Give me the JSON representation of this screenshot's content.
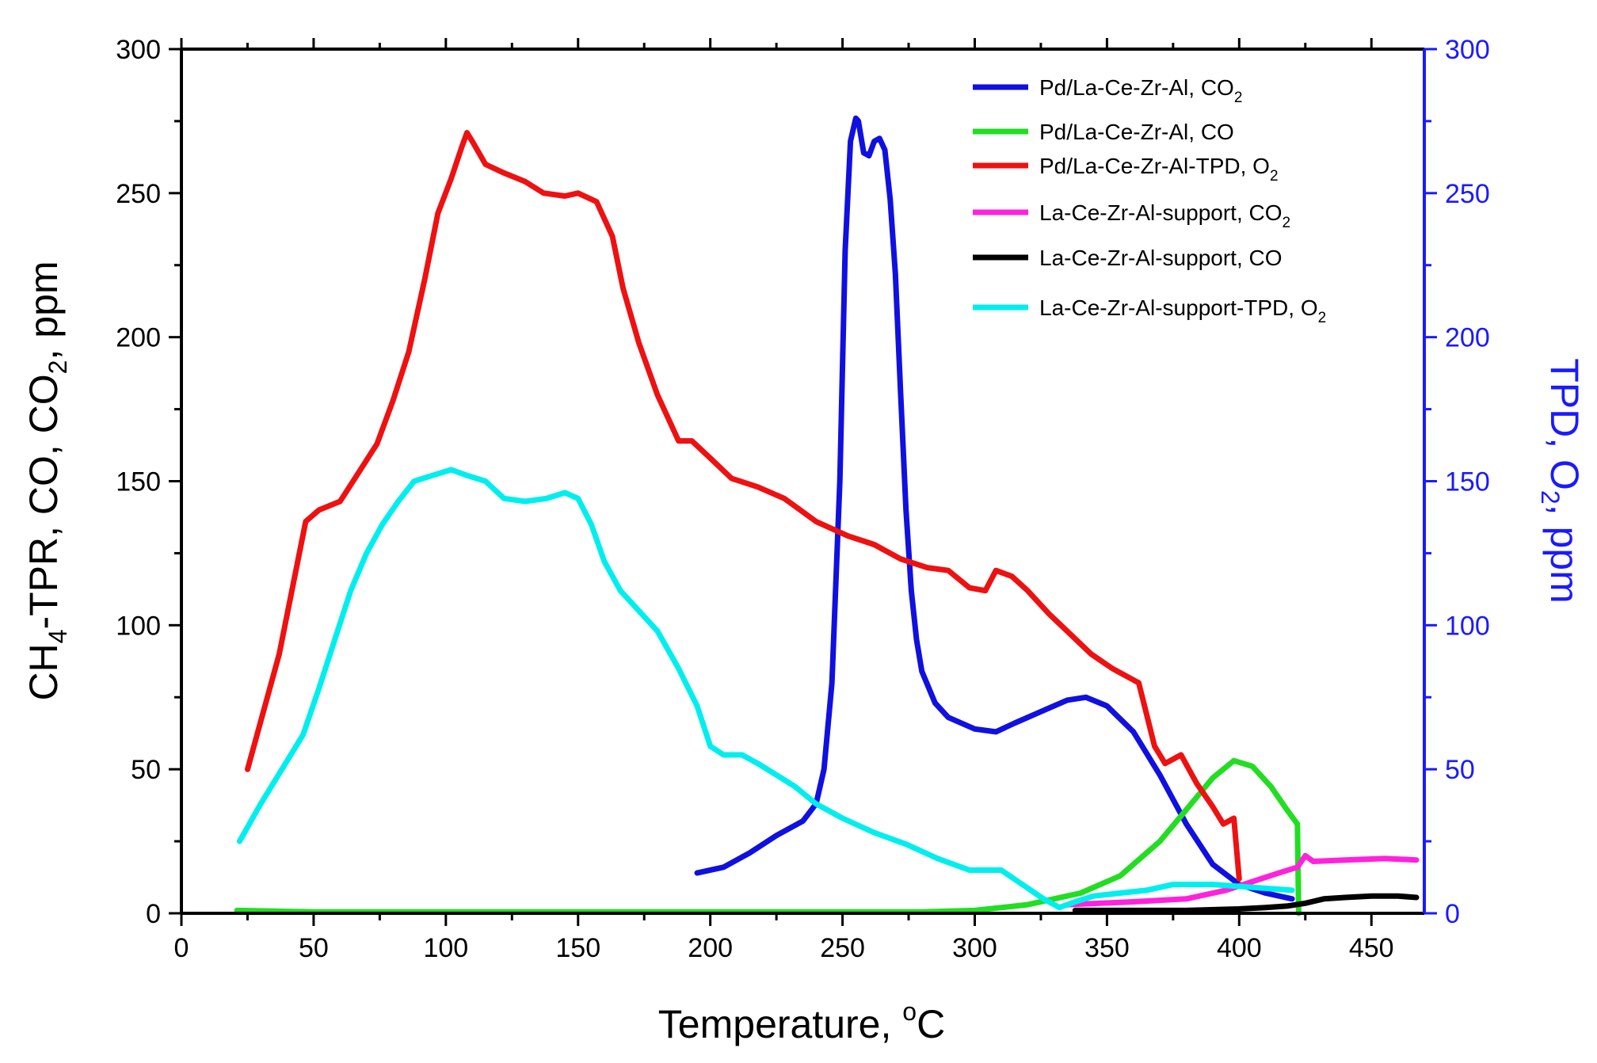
{
  "chart_data": {
    "type": "line",
    "xlabel": {
      "main": "Temperature, ",
      "sup": "o",
      "tail": "C"
    },
    "ylabel_left": {
      "main": "CH",
      "sub1": "4",
      "mid": "-TPR, CO, CO",
      "sub2": "2",
      "tail": ", ppm"
    },
    "ylabel_right": {
      "main": "TPD, O",
      "sub": "2",
      "tail": ", ppm"
    },
    "xlim": [
      0,
      470
    ],
    "ylim_left": [
      0,
      300
    ],
    "ylim_right": [
      0,
      300
    ],
    "x_ticks": [
      0,
      50,
      100,
      150,
      200,
      250,
      300,
      350,
      400,
      450
    ],
    "x_tick_labels": [
      "0",
      "50",
      "100",
      "150",
      "200",
      "250",
      "300",
      "350",
      "400",
      "450"
    ],
    "y_ticks": [
      0,
      50,
      100,
      150,
      200,
      250,
      300
    ],
    "y_tick_labels": [
      "0",
      "50",
      "100",
      "150",
      "200",
      "250",
      "300"
    ],
    "y_right_tick_labels": [
      "0",
      "50",
      "100",
      "150",
      "200",
      "250",
      "300"
    ],
    "colors": {
      "axis": "#000000",
      "right_axis": "#1a1aff"
    },
    "legend_position": "top-right",
    "series": [
      {
        "key": "pd-co2",
        "name": "Pd/La-Ce-Zr-Al, CO",
        "sub": "2",
        "color": "#1010e0",
        "axis": "right",
        "x": [
          195,
          205,
          215,
          225,
          235,
          240,
          243,
          246,
          249,
          251,
          253,
          255,
          256,
          258,
          260,
          262,
          264,
          266,
          268,
          270,
          272,
          274,
          276,
          278,
          280,
          285,
          290,
          300,
          308,
          315,
          325,
          335,
          342,
          350,
          360,
          370,
          380,
          390,
          400,
          410,
          420
        ],
        "y": [
          14,
          16,
          21,
          27,
          32,
          38,
          50,
          80,
          150,
          230,
          268,
          276,
          275,
          264,
          263,
          268,
          269,
          265,
          248,
          222,
          180,
          140,
          112,
          95,
          84,
          73,
          68,
          64,
          63,
          66,
          70,
          74,
          75,
          72,
          63,
          48,
          31,
          17,
          10,
          7,
          5
        ]
      },
      {
        "key": "pd-co",
        "name": "Pd/La-Ce-Zr-Al, CO",
        "sub": "",
        "color": "#22dd22",
        "axis": "left",
        "x": [
          21,
          50,
          100,
          150,
          200,
          250,
          280,
          300,
          320,
          340,
          355,
          370,
          380,
          390,
          398,
          405,
          412,
          418,
          422,
          422.5
        ],
        "y": [
          1,
          0.5,
          0.5,
          0.5,
          0.5,
          0.5,
          0.5,
          1,
          3,
          7,
          13,
          25,
          36,
          47,
          53,
          51,
          44,
          36,
          31,
          0
        ]
      },
      {
        "key": "pd-o2",
        "name": "Pd/La-Ce-Zr-Al-TPD, O",
        "sub": "2",
        "color": "#ee1111",
        "axis": "right",
        "x": [
          25,
          37,
          47,
          52,
          60,
          67,
          74,
          80,
          86,
          92,
          97,
          102,
          106,
          108,
          110,
          115,
          122,
          130,
          137,
          145,
          150,
          157,
          163,
          167,
          173,
          180,
          188,
          193,
          200,
          208,
          218,
          228,
          240,
          252,
          262,
          272,
          282,
          290,
          298,
          304,
          308,
          314,
          320,
          328,
          336,
          344,
          352,
          362,
          368,
          372,
          378,
          384,
          390,
          394,
          398,
          400
        ],
        "y": [
          50,
          90,
          136,
          140,
          143,
          153,
          163,
          178,
          195,
          220,
          243,
          255,
          266,
          271,
          268,
          260,
          257,
          254,
          250,
          249,
          250,
          247,
          235,
          217,
          198,
          180,
          164,
          164,
          158,
          151,
          148,
          144,
          136,
          131,
          128,
          123,
          120,
          119,
          113,
          112,
          119,
          117,
          112,
          104,
          97,
          90,
          85,
          80,
          58,
          52,
          55,
          45,
          37,
          31,
          33,
          12
        ]
      },
      {
        "key": "support-co2",
        "name": "La-Ce-Zr-Al-support, CO",
        "sub": "2",
        "color": "#ff22dd",
        "axis": "left",
        "x": [
          335,
          360,
          380,
          395,
          405,
          415,
          422,
          425,
          428,
          440,
          455,
          467
        ],
        "y": [
          3,
          4,
          5,
          8,
          11,
          14,
          16,
          20,
          18,
          18.5,
          19,
          18.5
        ]
      },
      {
        "key": "support-co",
        "name": "La-Ce-Zr-Al-support, CO",
        "sub": "",
        "color": "#000000",
        "axis": "left",
        "x": [
          338,
          380,
          400,
          410,
          418,
          425,
          432,
          440,
          450,
          460,
          467
        ],
        "y": [
          1,
          1,
          1.5,
          2,
          2.5,
          3.5,
          5,
          5.5,
          6,
          6,
          5.5
        ]
      },
      {
        "key": "support-o2",
        "name": "La-Ce-Zr-Al-support-TPD, O",
        "sub": "2",
        "color": "#00eeee",
        "axis": "right",
        "x": [
          22,
          30,
          38,
          46,
          52,
          58,
          64,
          70,
          76,
          82,
          88,
          95,
          102,
          108,
          115,
          122,
          130,
          138,
          145,
          150,
          155,
          160,
          166,
          172,
          180,
          188,
          195,
          200,
          205,
          212,
          218,
          225,
          232,
          240,
          250,
          262,
          274,
          286,
          298,
          310,
          318,
          326,
          332,
          338,
          345,
          355,
          365,
          375,
          390,
          405,
          420
        ],
        "y": [
          25,
          38,
          50,
          62,
          78,
          95,
          112,
          125,
          135,
          143,
          150,
          152,
          154,
          152,
          150,
          144,
          143,
          144,
          146,
          144,
          135,
          122,
          112,
          106,
          98,
          85,
          72,
          58,
          55,
          55,
          52,
          48,
          44,
          38,
          33,
          28,
          24,
          19,
          15,
          15,
          10,
          5,
          2,
          4,
          6,
          7,
          8,
          10,
          10,
          9,
          8
        ]
      }
    ]
  }
}
